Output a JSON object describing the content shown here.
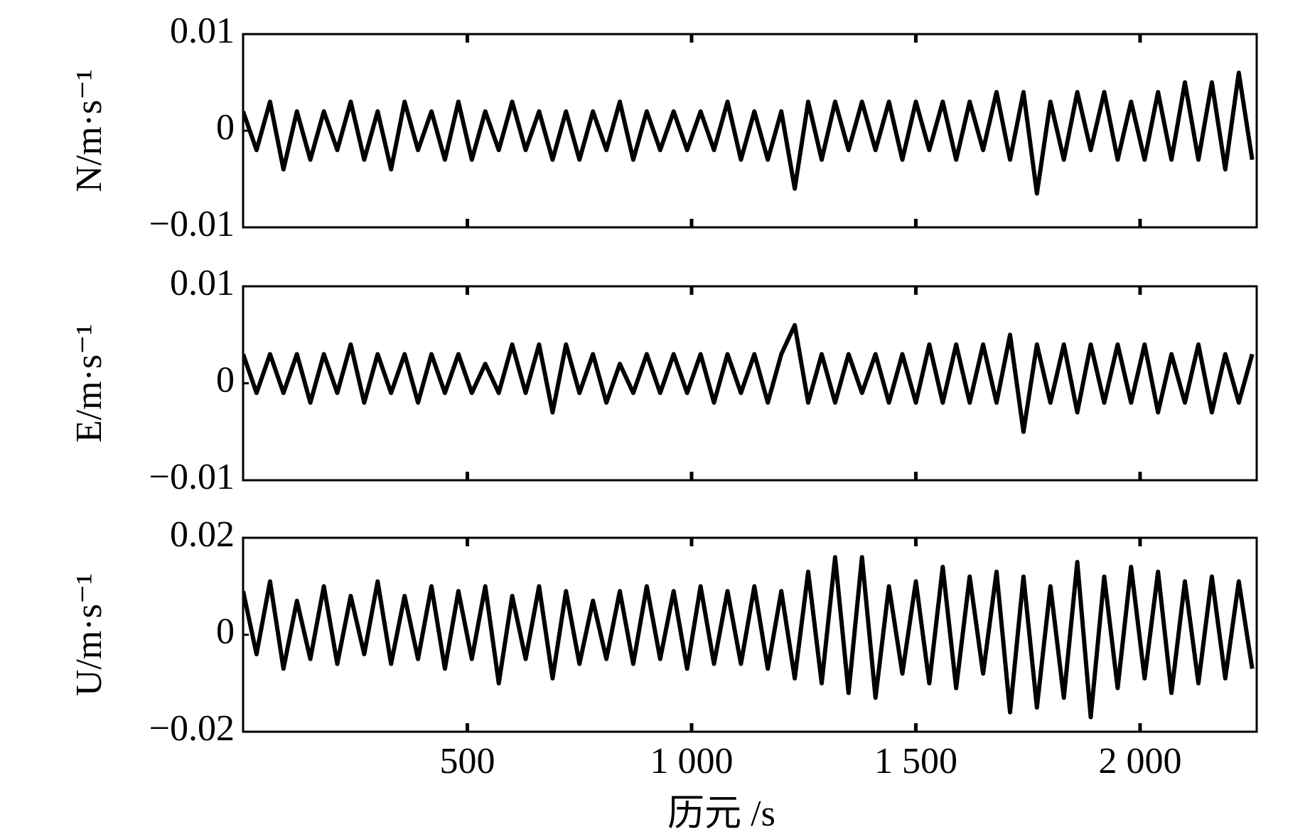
{
  "chart_data": [
    {
      "type": "line",
      "ylabel": "N/m·s⁻¹",
      "color": "#000000",
      "xlim": [
        0,
        2260
      ],
      "ylim": [
        -0.01,
        0.01
      ],
      "yticks": [
        {
          "value": -0.01,
          "label": "−0.01"
        },
        0,
        0.01
      ],
      "x": [
        0,
        30,
        60,
        90,
        120,
        150,
        180,
        210,
        240,
        270,
        300,
        330,
        360,
        390,
        420,
        450,
        480,
        510,
        540,
        570,
        600,
        630,
        660,
        690,
        720,
        750,
        780,
        810,
        840,
        870,
        900,
        930,
        960,
        990,
        1020,
        1050,
        1080,
        1110,
        1140,
        1170,
        1200,
        1230,
        1260,
        1290,
        1320,
        1350,
        1380,
        1410,
        1440,
        1470,
        1500,
        1530,
        1560,
        1590,
        1620,
        1650,
        1680,
        1710,
        1740,
        1770,
        1800,
        1830,
        1860,
        1890,
        1920,
        1950,
        1980,
        2010,
        2040,
        2070,
        2100,
        2130,
        2160,
        2190,
        2220,
        2250
      ],
      "values": [
        0.002,
        -0.002,
        0.003,
        -0.004,
        0.002,
        -0.003,
        0.002,
        -0.002,
        0.003,
        -0.003,
        0.002,
        -0.004,
        0.003,
        -0.002,
        0.002,
        -0.003,
        0.003,
        -0.003,
        0.002,
        -0.002,
        0.003,
        -0.002,
        0.002,
        -0.003,
        0.002,
        -0.003,
        0.002,
        -0.002,
        0.003,
        -0.003,
        0.002,
        -0.002,
        0.002,
        -0.002,
        0.002,
        -0.002,
        0.003,
        -0.003,
        0.002,
        -0.003,
        0.002,
        -0.006,
        0.003,
        -0.003,
        0.003,
        -0.002,
        0.003,
        -0.002,
        0.003,
        -0.003,
        0.003,
        -0.002,
        0.003,
        -0.003,
        0.003,
        -0.002,
        0.004,
        -0.003,
        0.004,
        -0.0065,
        0.003,
        -0.003,
        0.004,
        -0.002,
        0.004,
        -0.003,
        0.003,
        -0.003,
        0.004,
        -0.003,
        0.005,
        -0.003,
        0.005,
        -0.004,
        0.006,
        -0.003
      ]
    },
    {
      "type": "line",
      "ylabel": "E/m·s⁻¹",
      "color": "#000000",
      "xlim": [
        0,
        2260
      ],
      "ylim": [
        -0.01,
        0.01
      ],
      "yticks": [
        {
          "value": -0.01,
          "label": "−0.01"
        },
        0,
        0.01
      ],
      "x": [
        0,
        30,
        60,
        90,
        120,
        150,
        180,
        210,
        240,
        270,
        300,
        330,
        360,
        390,
        420,
        450,
        480,
        510,
        540,
        570,
        600,
        630,
        660,
        690,
        720,
        750,
        780,
        810,
        840,
        870,
        900,
        930,
        960,
        990,
        1020,
        1050,
        1080,
        1110,
        1140,
        1170,
        1200,
        1230,
        1260,
        1290,
        1320,
        1350,
        1380,
        1410,
        1440,
        1470,
        1500,
        1530,
        1560,
        1590,
        1620,
        1650,
        1680,
        1710,
        1740,
        1770,
        1800,
        1830,
        1860,
        1890,
        1920,
        1950,
        1980,
        2010,
        2040,
        2070,
        2100,
        2130,
        2160,
        2190,
        2220,
        2250
      ],
      "values": [
        0.003,
        -0.001,
        0.003,
        -0.001,
        0.003,
        -0.002,
        0.003,
        -0.001,
        0.004,
        -0.002,
        0.003,
        -0.001,
        0.003,
        -0.002,
        0.003,
        -0.001,
        0.003,
        -0.001,
        0.002,
        -0.001,
        0.004,
        -0.001,
        0.004,
        -0.003,
        0.004,
        -0.001,
        0.003,
        -0.002,
        0.002,
        -0.001,
        0.003,
        -0.001,
        0.003,
        -0.001,
        0.003,
        -0.002,
        0.003,
        -0.001,
        0.003,
        -0.002,
        0.003,
        0.006,
        -0.002,
        0.003,
        -0.002,
        0.003,
        -0.001,
        0.003,
        -0.002,
        0.003,
        -0.002,
        0.004,
        -0.002,
        0.004,
        -0.002,
        0.004,
        -0.002,
        0.005,
        -0.005,
        0.004,
        -0.002,
        0.004,
        -0.003,
        0.004,
        -0.002,
        0.004,
        -0.002,
        0.004,
        -0.003,
        0.003,
        -0.002,
        0.004,
        -0.003,
        0.003,
        -0.002,
        0.003
      ]
    },
    {
      "type": "line",
      "ylabel": "U/m·s⁻¹",
      "xlabel": "历元 /s",
      "color": "#000000",
      "xlim": [
        0,
        2260
      ],
      "ylim": [
        -0.02,
        0.02
      ],
      "yticks": [
        {
          "value": -0.02,
          "label": "−0.02"
        },
        0,
        0.02
      ],
      "xticks": [
        500,
        {
          "value": 1000,
          "label": "1 000"
        },
        {
          "value": 1500,
          "label": "1 500"
        },
        {
          "value": 2000,
          "label": "2 000"
        }
      ],
      "x": [
        0,
        30,
        60,
        90,
        120,
        150,
        180,
        210,
        240,
        270,
        300,
        330,
        360,
        390,
        420,
        450,
        480,
        510,
        540,
        570,
        600,
        630,
        660,
        690,
        720,
        750,
        780,
        810,
        840,
        870,
        900,
        930,
        960,
        990,
        1020,
        1050,
        1080,
        1110,
        1140,
        1170,
        1200,
        1230,
        1260,
        1290,
        1320,
        1350,
        1380,
        1410,
        1440,
        1470,
        1500,
        1530,
        1560,
        1590,
        1620,
        1650,
        1680,
        1710,
        1740,
        1770,
        1800,
        1830,
        1860,
        1890,
        1920,
        1950,
        1980,
        2010,
        2040,
        2070,
        2100,
        2130,
        2160,
        2190,
        2220,
        2250
      ],
      "values": [
        0.009,
        -0.004,
        0.011,
        -0.007,
        0.007,
        -0.005,
        0.01,
        -0.006,
        0.008,
        -0.004,
        0.011,
        -0.006,
        0.008,
        -0.005,
        0.01,
        -0.007,
        0.009,
        -0.005,
        0.01,
        -0.01,
        0.008,
        -0.005,
        0.01,
        -0.009,
        0.009,
        -0.006,
        0.007,
        -0.005,
        0.009,
        -0.006,
        0.01,
        -0.005,
        0.009,
        -0.007,
        0.01,
        -0.006,
        0.009,
        -0.006,
        0.01,
        -0.007,
        0.009,
        -0.009,
        0.013,
        -0.01,
        0.016,
        -0.012,
        0.016,
        -0.013,
        0.01,
        -0.008,
        0.011,
        -0.01,
        0.014,
        -0.011,
        0.012,
        -0.008,
        0.013,
        -0.016,
        0.012,
        -0.015,
        0.01,
        -0.013,
        0.015,
        -0.017,
        0.012,
        -0.011,
        0.014,
        -0.009,
        0.013,
        -0.012,
        0.011,
        -0.01,
        0.012,
        -0.009,
        0.011,
        -0.007
      ]
    }
  ]
}
